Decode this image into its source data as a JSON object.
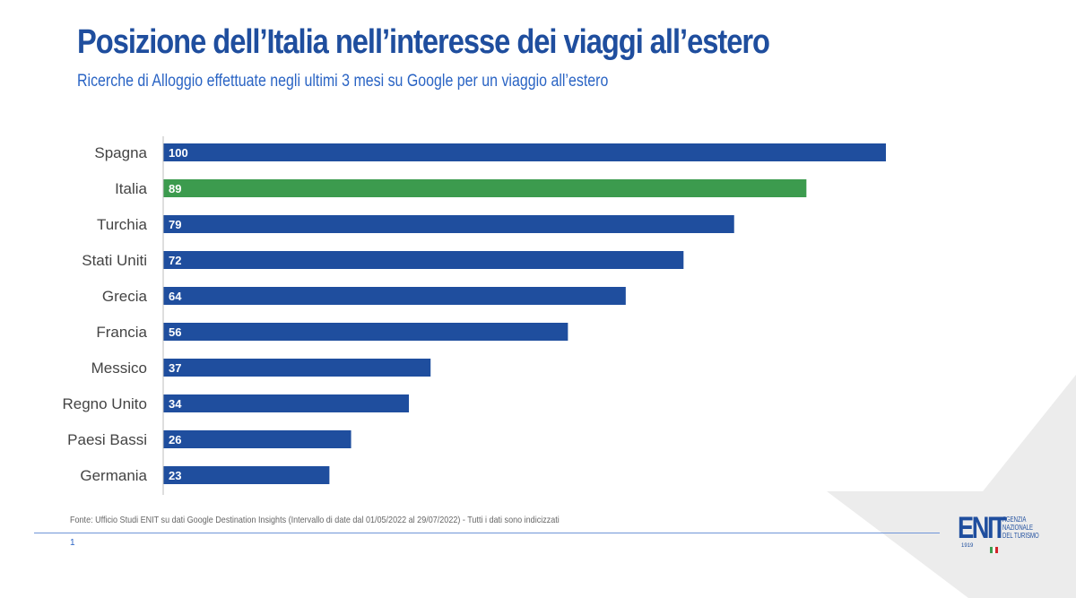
{
  "header": {
    "title": "Posizione dell’Italia nell’interesse dei viaggi all’estero",
    "subtitle": "Ricerche di Alloggio effettuate negli ultimi 3 mesi su Google per un viaggio all’estero"
  },
  "chart_data": {
    "type": "bar",
    "orientation": "horizontal",
    "title": "Posizione dell’Italia nell’interesse dei viaggi all’estero",
    "subtitle": "Ricerche di Alloggio effettuate negli ultimi 3 mesi su Google per un viaggio all’estero",
    "categories": [
      "Spagna",
      "Italia",
      "Turchia",
      "Stati Uniti",
      "Grecia",
      "Francia",
      "Messico",
      "Regno Unito",
      "Paesi Bassi",
      "Germania"
    ],
    "values": [
      100,
      89,
      79,
      72,
      64,
      56,
      37,
      34,
      26,
      23
    ],
    "data_labels": [
      "100",
      "89",
      "79",
      "72",
      "64",
      "56",
      "37",
      "34",
      "26",
      "23"
    ],
    "highlight_category": "Italia",
    "xlim": [
      0,
      100
    ],
    "grid": false,
    "legend": "none",
    "xlabel": "",
    "ylabel": ""
  },
  "colors": {
    "bar": "#1f4e9e",
    "highlight": "#3c9b4e",
    "title": "#1f4e9e",
    "subtitle": "#2a64c4",
    "axis": "#bdbdbd",
    "label_text": "#444444",
    "bar_label_text": "#ffffff"
  },
  "footer": {
    "source": "Fonte: Ufficio Studi ENIT su dati Google Destination Insights (Intervallo di date dal 01/05/2022 al 29/07/2022) - Tutti i dati sono indicizzati",
    "page_number": "1"
  },
  "logo": {
    "mark": "ENIT",
    "text_line1": "AGENZIA",
    "text_line2": "NAZIONALE",
    "text_line3": "DEL TURISMO",
    "year": "1919"
  }
}
